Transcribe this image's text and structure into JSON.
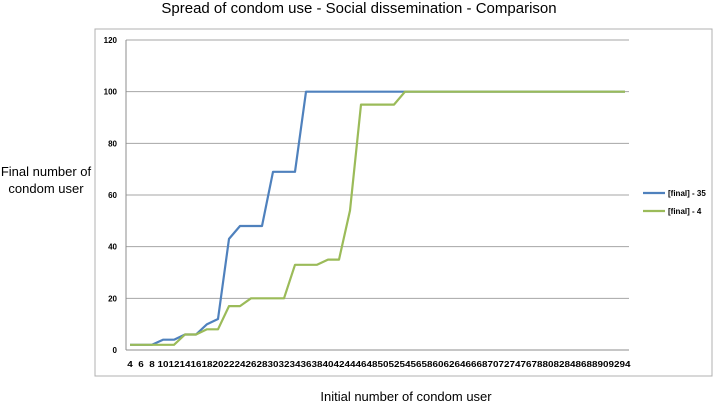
{
  "chart_data": {
    "type": "line",
    "title": "Spread of condom use - Social dissemination - Comparison",
    "xlabel": "Initial number of condom user",
    "ylabel": "Final number of condom user",
    "ylim": [
      0,
      120
    ],
    "yticks": [
      0,
      20,
      40,
      60,
      80,
      100,
      120
    ],
    "grid": true,
    "legend_position": "right",
    "x": [
      4,
      6,
      8,
      10,
      12,
      14,
      16,
      18,
      20,
      22,
      24,
      26,
      28,
      30,
      32,
      34,
      36,
      38,
      40,
      42,
      44,
      46,
      48,
      50,
      52,
      54,
      56,
      58,
      60,
      62,
      64,
      66,
      68,
      70,
      72,
      74,
      76,
      78,
      80,
      82,
      84,
      86,
      88,
      90,
      92,
      94
    ],
    "series": [
      {
        "name": "[final] - 35",
        "color": "#4f81bd",
        "values": [
          2,
          2,
          2,
          4,
          4,
          6,
          6,
          10,
          12,
          43,
          48,
          48,
          48,
          69,
          69,
          69,
          100,
          100,
          100,
          100,
          100,
          100,
          100,
          100,
          100,
          100,
          100,
          100,
          100,
          100,
          100,
          100,
          100,
          100,
          100,
          100,
          100,
          100,
          100,
          100,
          100,
          100,
          100,
          100,
          100,
          100
        ]
      },
      {
        "name": "[final] - 4",
        "color": "#9bbb59",
        "values": [
          2,
          2,
          2,
          2,
          2,
          6,
          6,
          8,
          8,
          17,
          17,
          20,
          20,
          20,
          20,
          33,
          33,
          33,
          35,
          35,
          54,
          95,
          95,
          95,
          95,
          100,
          100,
          100,
          100,
          100,
          100,
          100,
          100,
          100,
          100,
          100,
          100,
          100,
          100,
          100,
          100,
          100,
          100,
          100,
          100,
          100
        ]
      }
    ]
  }
}
